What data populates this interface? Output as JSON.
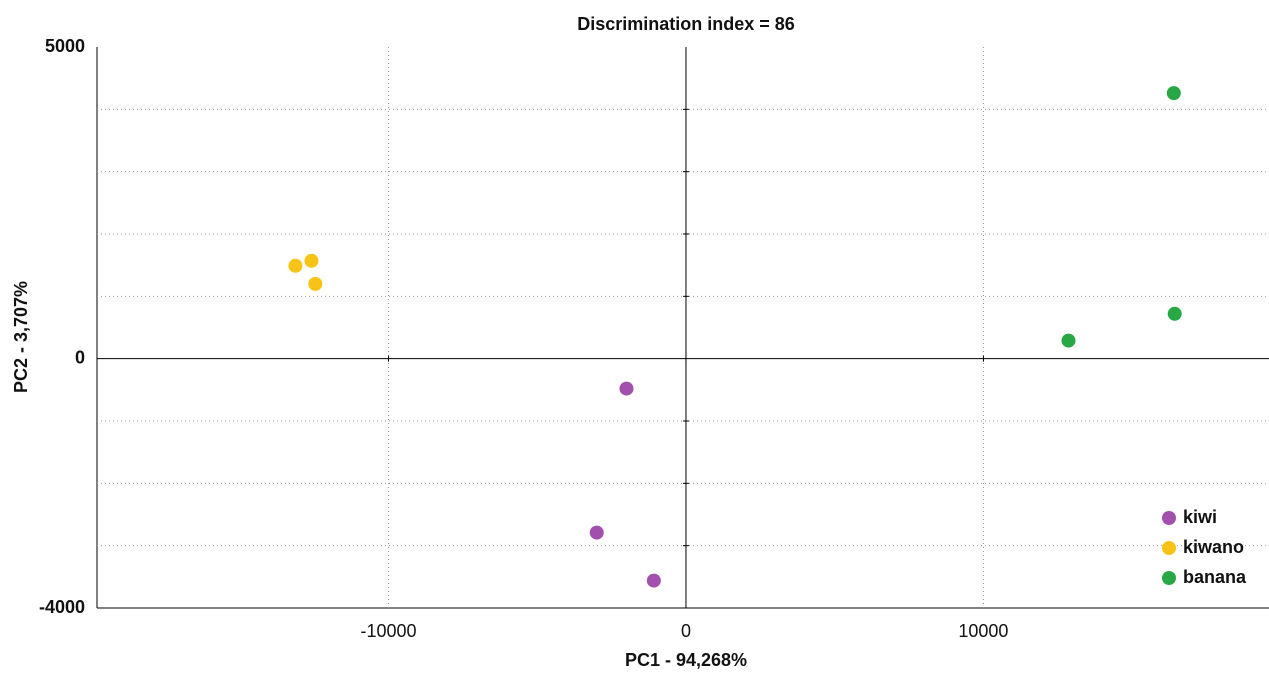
{
  "chart_data": {
    "type": "scatter",
    "title": "Discrimination index = 86",
    "x_label": "PC1 - 94,268%",
    "y_label": "PC2 - 3,707%",
    "xlim": [
      -19800,
      19600
    ],
    "ylim": [
      -4000,
      5000
    ],
    "xticks": [
      -10000,
      0,
      10000
    ],
    "yticks": [
      -4000,
      0,
      5000
    ],
    "ygrid": [
      -3000,
      -2000,
      -1000,
      1000,
      2000,
      3000,
      4000
    ],
    "grid": true,
    "legend": "lower right",
    "series": [
      {
        "name": "kiwi",
        "color": "#a24fae",
        "x": [
          -2000,
          -3000,
          -1080
        ],
        "values": [
          -480,
          -2790,
          -3560
        ]
      },
      {
        "name": "kiwano",
        "color": "#f6c316",
        "x": [
          -13130,
          -12590,
          -12460
        ],
        "values": [
          1490,
          1570,
          1200
        ]
      },
      {
        "name": "banana",
        "color": "#27a844",
        "x": [
          16400,
          16430,
          12860
        ],
        "values": [
          4260,
          720,
          290
        ]
      }
    ]
  }
}
